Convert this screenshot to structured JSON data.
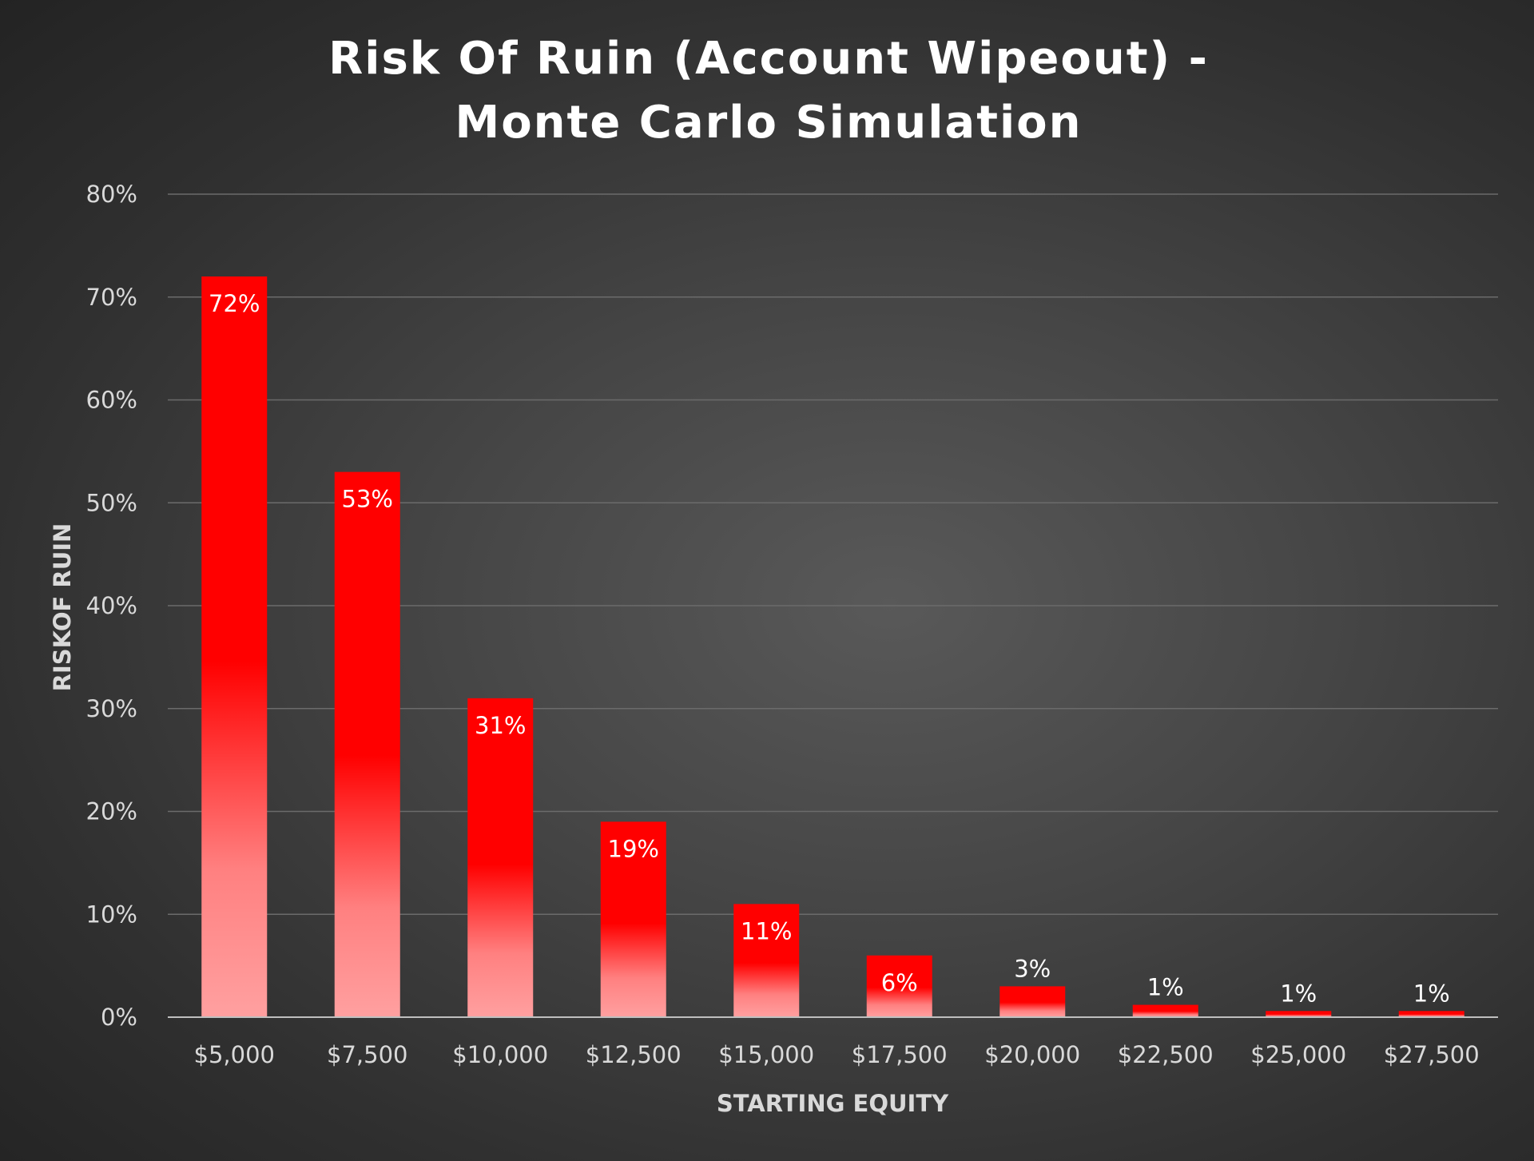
{
  "chart_data": {
    "type": "bar",
    "title_lines": [
      "Risk Of Ruin (Account Wipeout) -",
      "Monte Carlo Simulation"
    ],
    "xlabel": "STARTING EQUITY",
    "ylabel": "RISKOF RUIN",
    "categories": [
      "$5,000",
      "$7,500",
      "$10,000",
      "$12,500",
      "$15,000",
      "$17,500",
      "$20,000",
      "$22,500",
      "$25,000",
      "$27,500"
    ],
    "values": [
      72,
      53,
      31,
      19,
      11,
      6,
      3,
      1.2,
      0.6,
      0.6
    ],
    "data_labels": [
      "72%",
      "53%",
      "31%",
      "19%",
      "11%",
      "6%",
      "3%",
      "1%",
      "1%",
      "1%"
    ],
    "ylim": [
      0,
      80
    ],
    "yticks": [
      0,
      10,
      20,
      30,
      40,
      50,
      60,
      70,
      80
    ],
    "ytick_labels": [
      "0%",
      "10%",
      "20%",
      "30%",
      "40%",
      "50%",
      "60%",
      "70%",
      "80%"
    ],
    "grid": true,
    "legend": "none",
    "colors": {
      "bar_top": "#ff0000",
      "bar_bottom": "#ffa0a0",
      "gridline": "#6b6b6b",
      "axis": "#bfbfbf"
    }
  }
}
